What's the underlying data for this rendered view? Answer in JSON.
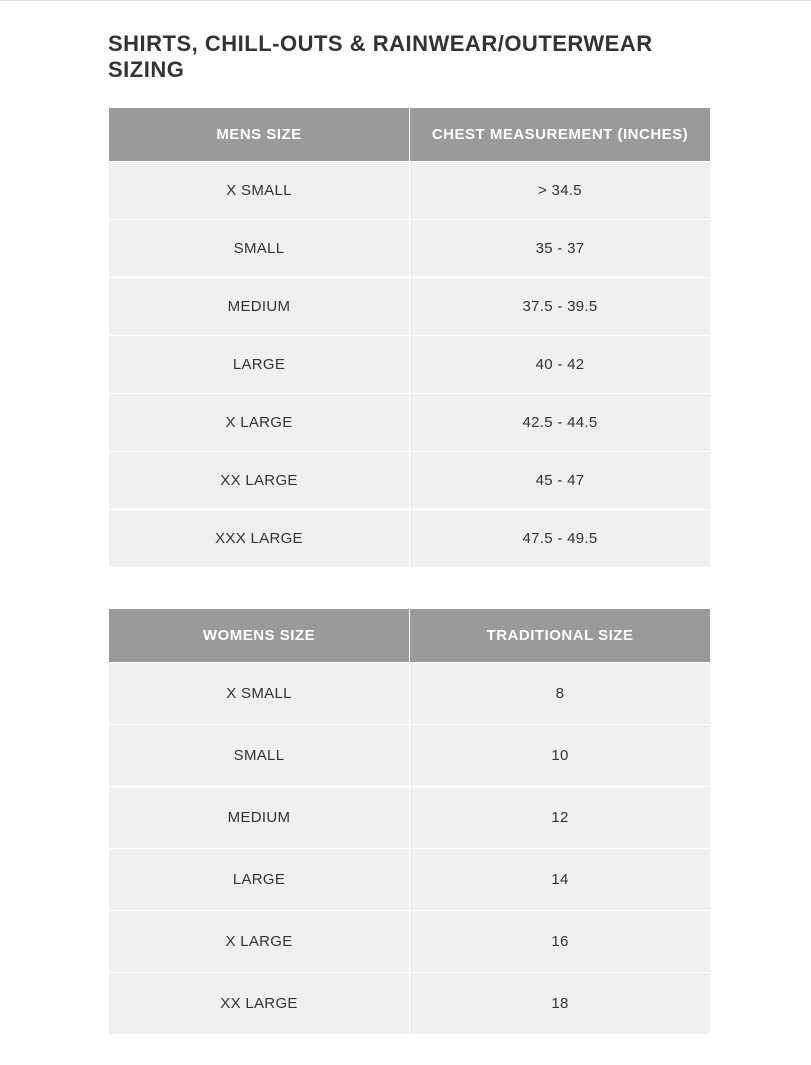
{
  "title": "SHIRTS, CHILL-OUTS & RAINWEAR/OUTERWEAR SIZING",
  "mens_table": {
    "columns": [
      "MENS SIZE",
      "CHEST MEASUREMENT (INCHES)"
    ],
    "rows": [
      [
        "X SMALL",
        "> 34.5"
      ],
      [
        "SMALL",
        "35 - 37"
      ],
      [
        "MEDIUM",
        "37.5 - 39.5"
      ],
      [
        "LARGE",
        "40 - 42"
      ],
      [
        "X LARGE",
        "42.5 - 44.5"
      ],
      [
        "XX LARGE",
        "45 - 47"
      ],
      [
        "XXX LARGE",
        "47.5 - 49.5"
      ]
    ],
    "header_bg_color": "#9a9a9a",
    "header_text_color": "#ffffff",
    "cell_bg_color": "#f0f0f0",
    "cell_text_color": "#333333",
    "border_color": "#ffffff",
    "col_widths": [
      "50%",
      "50%"
    ]
  },
  "womens_table": {
    "columns": [
      "WOMENS SIZE",
      "TRADITIONAL SIZE"
    ],
    "rows": [
      [
        "X SMALL",
        "8"
      ],
      [
        "SMALL",
        "10"
      ],
      [
        "MEDIUM",
        "12"
      ],
      [
        "LARGE",
        "14"
      ],
      [
        "X LARGE",
        "16"
      ],
      [
        "XX LARGE",
        "18"
      ]
    ],
    "header_bg_color": "#9a9a9a",
    "header_text_color": "#ffffff",
    "cell_bg_color": "#f0f0f0",
    "cell_text_color": "#333333",
    "border_color": "#ffffff",
    "col_widths": [
      "50%",
      "50%"
    ]
  }
}
